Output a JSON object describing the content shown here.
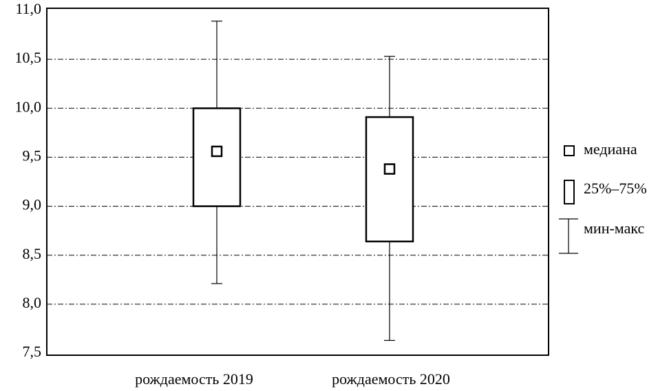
{
  "chart_data": {
    "type": "box",
    "categories": [
      "рождаемость 2019",
      "рождаемость 2020"
    ],
    "min": [
      8.21,
      7.63
    ],
    "q1": [
      9.0,
      8.64
    ],
    "median": [
      9.56,
      9.38
    ],
    "q3": [
      10.0,
      9.91
    ],
    "max": [
      10.89,
      10.53
    ],
    "ylim": [
      7.5,
      11.0
    ],
    "yticks": [
      {
        "value": 7.5,
        "label": "7,5"
      },
      {
        "value": 8,
        "label": "8,0"
      },
      {
        "value": 8.5,
        "label": "8,5"
      },
      {
        "value": 9,
        "label": "9,0"
      },
      {
        "value": 9.5,
        "label": "9,5"
      },
      {
        "value": 10,
        "label": "10,0"
      },
      {
        "value": 10.5,
        "label": "10,5"
      },
      {
        "value": 11,
        "label": "11,0"
      }
    ],
    "grid": true,
    "color": "#000000",
    "legend": [
      "медиана",
      "25%–75%",
      "мин-макс"
    ]
  }
}
